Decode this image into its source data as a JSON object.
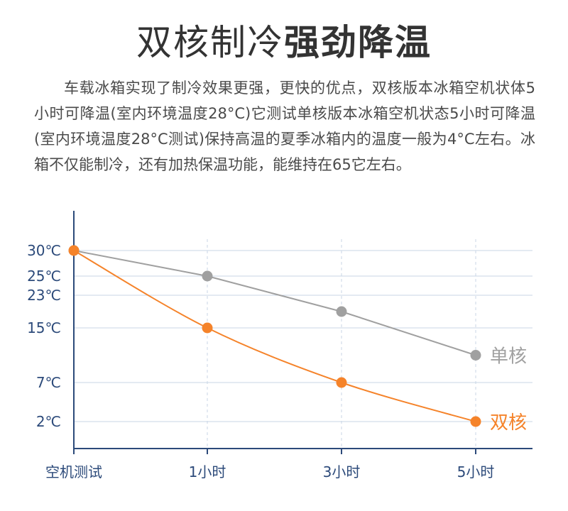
{
  "header": {
    "title_light": "双核制冷",
    "title_bold": "强劲降温"
  },
  "description": "车载冰箱实现了制冷效果更强，更快的优点，双核版本冰箱空机状体5小时可降温(室内环境温度28°C)它测试单核版本冰箱空机状态5小时可降温(室内环境温度28°C测试)保持高温的夏季冰箱内的温度一般为4°C左右。冰箱不仅能制冷，还有加热保温功能，能维持在65它左右。",
  "colors": {
    "axis": "#2c4a7a",
    "grid": "#c9d6e6",
    "single_core": "#a0a0a0",
    "dual_core": "#f5832a"
  },
  "chart_data": {
    "type": "line",
    "categories": [
      "空机测试",
      "1小时",
      "3小时",
      "5小时"
    ],
    "y_ticks": [
      {
        "value": 30,
        "label": "30℃"
      },
      {
        "value": 25,
        "label": "25℃"
      },
      {
        "value": 23,
        "label": "23℃"
      },
      {
        "value": 15,
        "label": "15℃"
      },
      {
        "value": 7,
        "label": "7℃"
      },
      {
        "value": 2,
        "label": "2℃"
      }
    ],
    "series": [
      {
        "name": "单核",
        "color": "#a0a0a0",
        "values": [
          30,
          25,
          19,
          11
        ],
        "curve": false
      },
      {
        "name": "双核",
        "color": "#f5832a",
        "values": [
          30,
          15,
          7,
          2
        ],
        "curve": true
      }
    ],
    "grid": true,
    "legend": "end-of-line"
  }
}
